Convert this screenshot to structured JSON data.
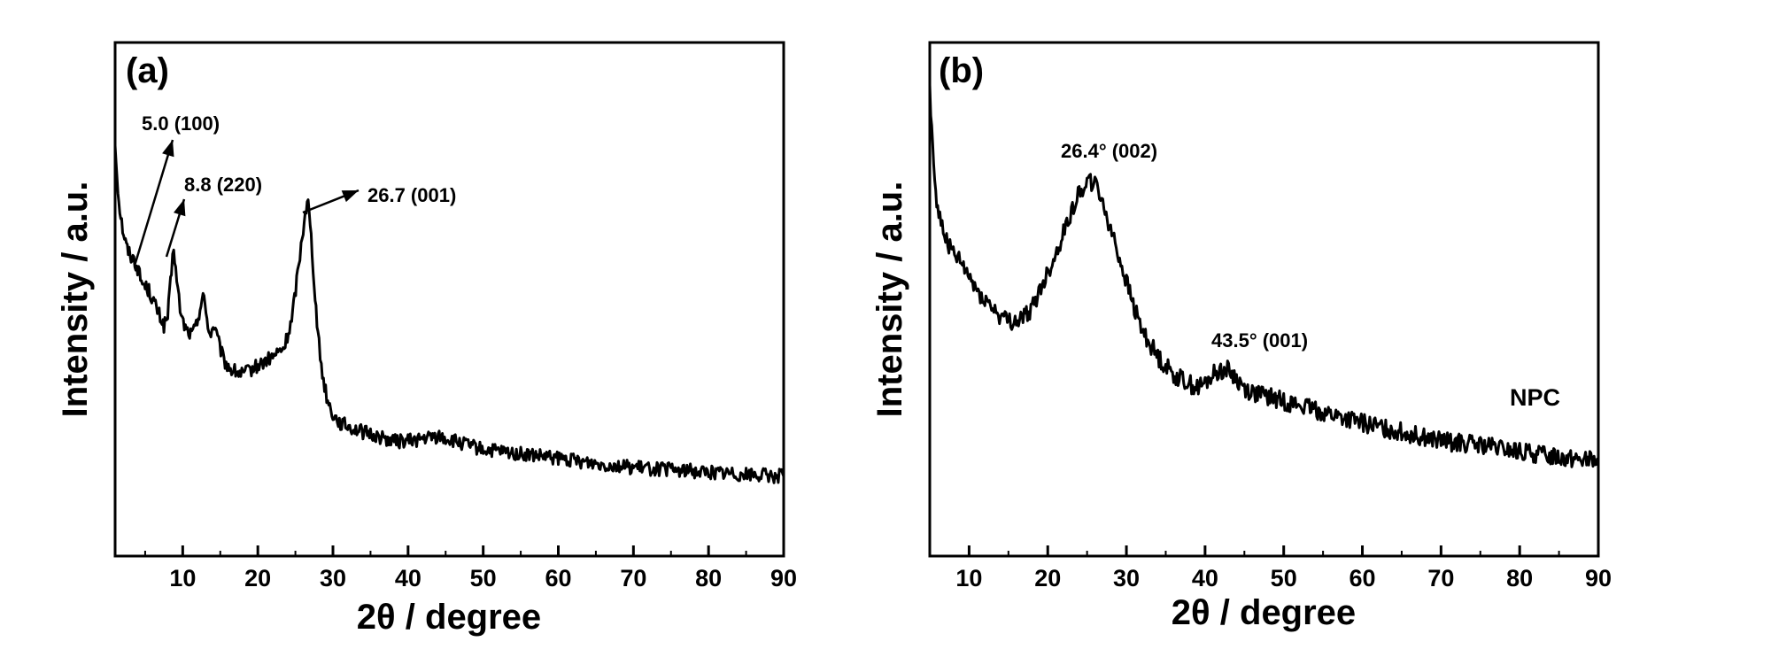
{
  "chart_data": [
    {
      "type": "line",
      "panel_label": "(a)",
      "xlabel": "2θ / degree",
      "ylabel": "Intensity / a.u.",
      "xlim": [
        1,
        90
      ],
      "ylim": [
        0,
        100
      ],
      "xticks": [
        10,
        20,
        30,
        40,
        50,
        60,
        70,
        80,
        90
      ],
      "y_tick_labels_shown": false,
      "series": [
        {
          "x": [
            1,
            1.5,
            2,
            2.5,
            3,
            3.5,
            4,
            4.5,
            5,
            5.5,
            6,
            6.5,
            7,
            7.5,
            8,
            8.5,
            8.8,
            9.2,
            9.8,
            10.5,
            11.2,
            11.8,
            12.3,
            12.7,
            13.1,
            13.6,
            14.2,
            14.8,
            15.5,
            16.5,
            18,
            20,
            22,
            23.5,
            24.5,
            25.3,
            25.9,
            26.3,
            26.7,
            27.1,
            27.5,
            28,
            28.6,
            29.3,
            30,
            31,
            32.5,
            34,
            36,
            38,
            40,
            42,
            44,
            46,
            48,
            50,
            55,
            60,
            65,
            70,
            75,
            80,
            85,
            90
          ],
          "y": [
            85,
            72,
            66,
            62,
            60,
            59,
            57,
            54,
            53,
            52,
            50,
            48,
            46,
            44,
            46,
            56,
            62,
            54,
            46,
            43,
            42,
            44,
            48,
            51,
            47,
            42,
            44,
            40,
            36,
            34,
            33,
            35,
            37,
            39,
            45,
            56,
            64,
            70,
            72,
            64,
            54,
            42,
            33,
            27,
            24,
            22,
            21,
            20,
            19,
            18,
            18,
            18.5,
            19,
            18,
            17,
            16,
            15,
            14,
            13,
            12,
            11.5,
            11,
            10.5,
            10
          ]
        }
      ],
      "annotations": [
        {
          "text": "5.0 (100)",
          "x": 5.0
        },
        {
          "text": "8.8 (220)",
          "x": 8.8
        },
        {
          "text": "26.7 (001)",
          "x": 26.7
        }
      ]
    },
    {
      "type": "line",
      "panel_label": "(b)",
      "xlabel": "2θ / degree",
      "ylabel": "Intensity / a.u.",
      "xlim": [
        5,
        90
      ],
      "ylim": [
        0,
        100
      ],
      "xticks": [
        10,
        20,
        30,
        40,
        50,
        60,
        70,
        80,
        90
      ],
      "y_tick_labels_shown": false,
      "series": [
        {
          "name": "NPC",
          "x": [
            5,
            5.5,
            6,
            7,
            8,
            9,
            10,
            11,
            12,
            13,
            14,
            15,
            16,
            17,
            18,
            19,
            20,
            21,
            22,
            23,
            24,
            25,
            26,
            27,
            28,
            29,
            30,
            31,
            32,
            33,
            34,
            35,
            36,
            37,
            38,
            39,
            40,
            41,
            42,
            43,
            44,
            45,
            46,
            48,
            50,
            52,
            55,
            58,
            60,
            65,
            70,
            75,
            80,
            85,
            90
          ],
          "y": [
            98,
            80,
            70,
            64,
            60,
            58,
            55,
            52,
            50,
            48,
            46,
            45,
            45,
            46,
            48,
            52,
            56,
            60,
            65,
            70,
            74,
            77,
            76,
            72,
            66,
            60,
            54,
            48,
            43,
            40,
            37,
            35,
            33,
            32,
            31,
            30,
            31,
            33,
            34,
            34,
            32,
            30,
            29,
            28,
            27,
            26,
            24.5,
            23,
            22,
            20,
            18,
            17,
            15.5,
            14.5,
            13.5
          ]
        }
      ],
      "annotations": [
        {
          "text": "26.4° (002)",
          "x": 26.4
        },
        {
          "text": "43.5° (001)",
          "x": 43.5
        },
        {
          "text": "NPC",
          "x": 84
        }
      ]
    }
  ]
}
